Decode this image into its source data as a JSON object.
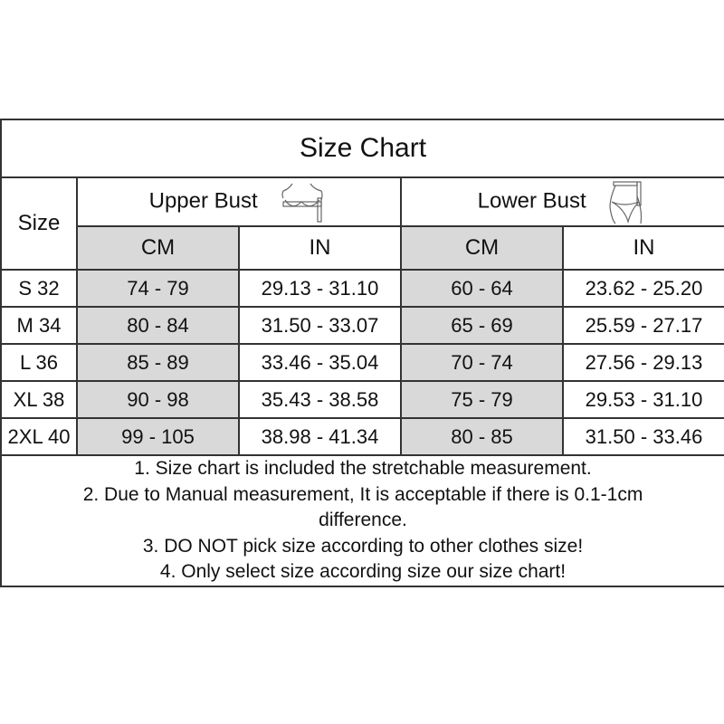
{
  "title": "Size Chart",
  "size_header": "Size",
  "groups": [
    {
      "label": "Upper Bust",
      "icon": "bust-measure-icon"
    },
    {
      "label": "Lower Bust",
      "icon": "waist-measure-icon"
    }
  ],
  "units": [
    "CM",
    "IN",
    "CM",
    "IN"
  ],
  "rows": [
    {
      "size": "S 32",
      "upper_cm": "74 - 79",
      "upper_in": "29.13 - 31.10",
      "lower_cm": "60 - 64",
      "lower_in": "23.62 - 25.20"
    },
    {
      "size": "M 34",
      "upper_cm": "80 - 84",
      "upper_in": "31.50 - 33.07",
      "lower_cm": "65 - 69",
      "lower_in": "25.59 - 27.17"
    },
    {
      "size": "L 36",
      "upper_cm": "85 - 89",
      "upper_in": "33.46 - 35.04",
      "lower_cm": "70 - 74",
      "lower_in": "27.56 - 29.13"
    },
    {
      "size": "XL 38",
      "upper_cm": "90 - 98",
      "upper_in": "35.43 - 38.58",
      "lower_cm": "75 - 79",
      "lower_in": "29.53 - 31.10"
    },
    {
      "size": "2XL 40",
      "upper_cm": "99 - 105",
      "upper_in": "38.98 - 41.34",
      "lower_cm": "80 - 85",
      "lower_in": "31.50 - 33.46"
    }
  ],
  "notes": [
    "1. Size chart is included the stretchable measurement.",
    "2. Due to Manual measurement, It is acceptable if there is 0.1-1cm difference.",
    "3. DO NOT pick size according to other clothes size!",
    "4. Only select size according size our size chart!"
  ],
  "colors": {
    "cm_fill": "#d9d9d9",
    "border": "#333333"
  }
}
